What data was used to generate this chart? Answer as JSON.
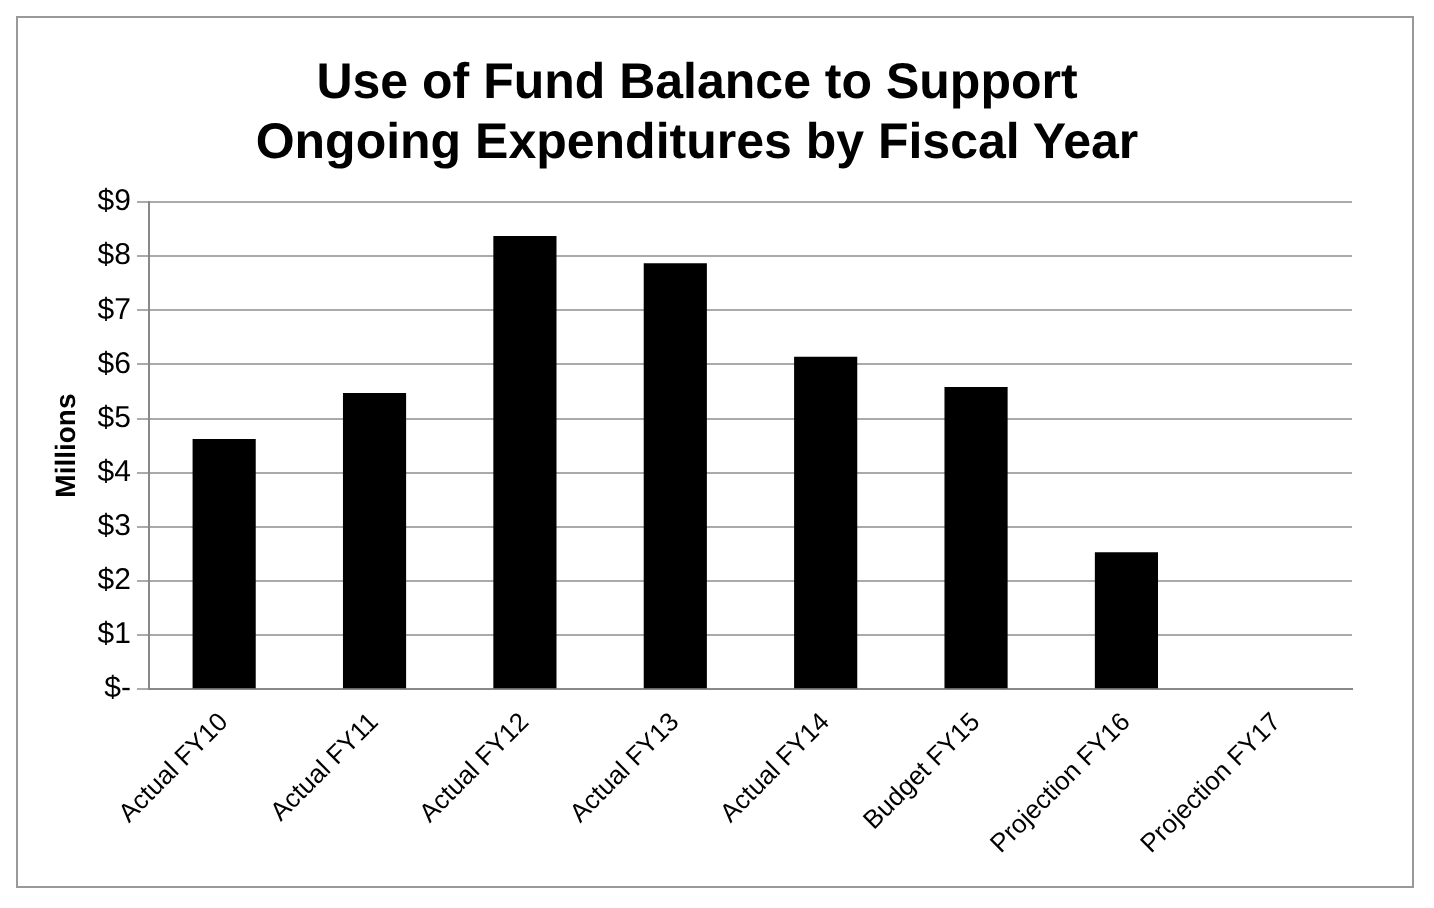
{
  "chart_data": {
    "type": "bar",
    "title": "Use of Fund Balance to Support\nOngoing Expenditures by Fiscal Year",
    "ylabel": "Millions",
    "categories": [
      "Actual FY10",
      "Actual FY11",
      "Actual FY12",
      "Actual FY13",
      "Actual FY14",
      "Budget FY15",
      "Projection FY16",
      "Projection FY17"
    ],
    "values": [
      4.62,
      5.47,
      8.37,
      7.87,
      6.14,
      5.58,
      2.53,
      0
    ],
    "color": "#000000",
    "ylim": [
      0,
      9
    ],
    "yticks": [
      {
        "value": 0,
        "label": "$-"
      },
      {
        "value": 1,
        "label": "$1"
      },
      {
        "value": 2,
        "label": "$2"
      },
      {
        "value": 3,
        "label": "$3"
      },
      {
        "value": 4,
        "label": "$4"
      },
      {
        "value": 5,
        "label": "$5"
      },
      {
        "value": 6,
        "label": "$6"
      },
      {
        "value": 7,
        "label": "$7"
      },
      {
        "value": 8,
        "label": "$8"
      },
      {
        "value": 9,
        "label": "$9"
      }
    ],
    "grid": "y",
    "legend": false
  }
}
